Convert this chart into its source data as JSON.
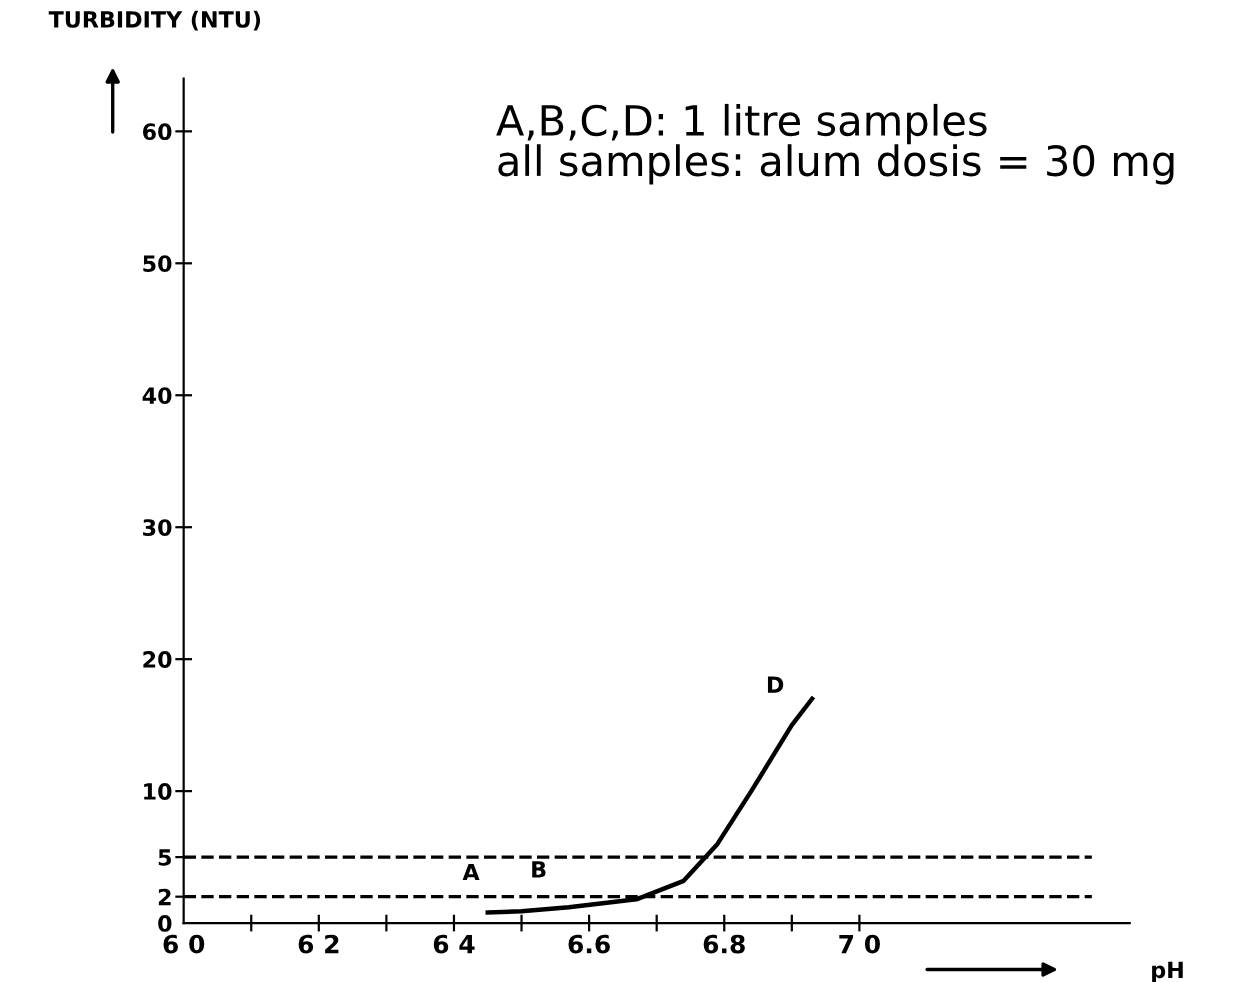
{
  "chart_data": {
    "type": "line",
    "xlabel": "pH",
    "ylabel": "TURBIDITY (NTU)",
    "x": [
      6.45,
      6.5,
      6.57,
      6.67,
      6.74,
      6.79,
      6.84,
      6.9,
      6.93
    ],
    "series": [
      {
        "color": "#000000",
        "values": [
          0.8,
          0.9,
          1.2,
          1.8,
          3.2,
          6.0,
          10,
          15,
          17
        ]
      }
    ],
    "xlim": [
      6.0,
      7.4
    ],
    "ylim": [
      0,
      64
    ],
    "xticks": [
      {
        "value": 6.0,
        "label": "6 0"
      },
      {
        "value": 6.1,
        "label": null
      },
      {
        "value": 6.2,
        "label": "6 2"
      },
      {
        "value": 6.3,
        "label": null
      },
      {
        "value": 6.4,
        "label": "6 4"
      },
      {
        "value": 6.5,
        "label": null
      },
      {
        "value": 6.6,
        "label": "6.6"
      },
      {
        "value": 6.7,
        "label": null
      },
      {
        "value": 6.8,
        "label": "6.8"
      },
      {
        "value": 6.9,
        "label": null
      },
      {
        "value": 7.0,
        "label": "7 0"
      }
    ],
    "yticks": [
      0,
      2,
      5,
      10,
      20,
      30,
      40,
      50,
      60
    ],
    "ref_lines": [
      {
        "axis": "y",
        "value": 5,
        "line_style": "dashed",
        "color": "#000000"
      },
      {
        "axis": "y",
        "value": 2,
        "line_style": "dashed",
        "color": "#000000"
      }
    ],
    "annotations": [
      "A,B,C,D: 1 litre samples\nall samples: alum dosis = 30 mg",
      {
        "text": "A",
        "x": 6.45,
        "y": 0.8
      },
      {
        "text": "B",
        "x": 6.55,
        "y": 1.0
      },
      {
        "text": "D",
        "x": 6.9,
        "y": 15
      }
    ],
    "grid": false,
    "legend": false,
    "marker": "none",
    "line_style": "solid"
  }
}
